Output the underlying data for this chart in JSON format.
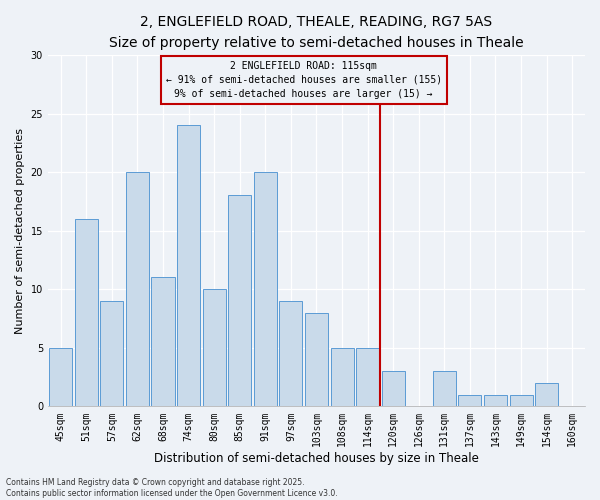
{
  "title": "2, ENGLEFIELD ROAD, THEALE, READING, RG7 5AS",
  "subtitle": "Size of property relative to semi-detached houses in Theale",
  "xlabel": "Distribution of semi-detached houses by size in Theale",
  "ylabel": "Number of semi-detached properties",
  "categories": [
    "45sqm",
    "51sqm",
    "57sqm",
    "62sqm",
    "68sqm",
    "74sqm",
    "80sqm",
    "85sqm",
    "91sqm",
    "97sqm",
    "103sqm",
    "108sqm",
    "114sqm",
    "120sqm",
    "126sqm",
    "131sqm",
    "137sqm",
    "143sqm",
    "149sqm",
    "154sqm",
    "160sqm"
  ],
  "values": [
    5,
    16,
    9,
    20,
    11,
    24,
    10,
    18,
    20,
    9,
    8,
    5,
    5,
    3,
    0,
    3,
    1,
    1,
    1,
    2,
    0
  ],
  "bar_color": "#c9daea",
  "bar_edge_color": "#5b9bd5",
  "background_color": "#eef2f7",
  "vline_color": "#c00000",
  "vline_index": 12.5,
  "annotation_title": "2 ENGLEFIELD ROAD: 115sqm",
  "annotation_line1": "← 91% of semi-detached houses are smaller (155)",
  "annotation_line2": "9% of semi-detached houses are larger (15) →",
  "annotation_box_color": "#c00000",
  "ylim": [
    0,
    30
  ],
  "yticks": [
    0,
    5,
    10,
    15,
    20,
    25,
    30
  ],
  "footer": "Contains HM Land Registry data © Crown copyright and database right 2025.\nContains public sector information licensed under the Open Government Licence v3.0.",
  "title_fontsize": 10,
  "subtitle_fontsize": 9,
  "xlabel_fontsize": 8.5,
  "ylabel_fontsize": 8,
  "tick_fontsize": 7,
  "annotation_fontsize": 7,
  "footer_fontsize": 5.5
}
